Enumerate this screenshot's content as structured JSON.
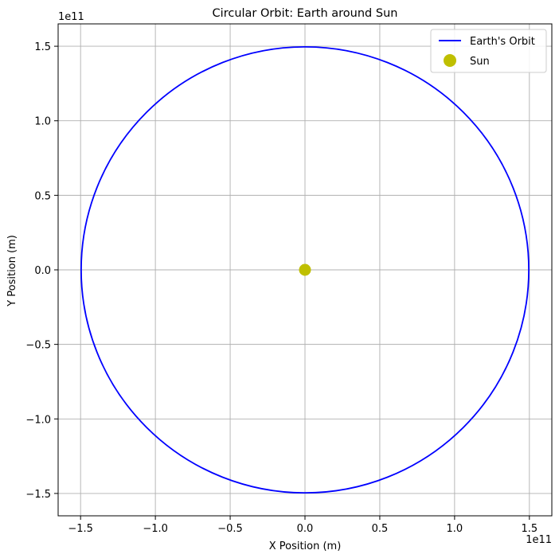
{
  "chart_data": {
    "type": "line",
    "title": "Circular Orbit: Earth around Sun",
    "xlabel": "X Position (m)",
    "ylabel": "Y Position (m)",
    "x_offset_label": "1e11",
    "y_offset_label": "1e11",
    "xlim": [
      -1.65,
      1.65
    ],
    "ylim": [
      -1.65,
      1.65
    ],
    "axis_scale": "1e11",
    "xticks": [
      -1.5,
      -1.0,
      -0.5,
      0.0,
      0.5,
      1.0,
      1.5
    ],
    "yticks": [
      -1.5,
      -1.0,
      -0.5,
      0.0,
      0.5,
      1.0,
      1.5
    ],
    "xtick_labels": [
      "−1.5",
      "−1.0",
      "−0.5",
      "0.0",
      "0.5",
      "1.0",
      "1.5"
    ],
    "ytick_labels": [
      "−1.5",
      "−1.0",
      "−0.5",
      "0.0",
      "0.5",
      "1.0",
      "1.5"
    ],
    "grid": true,
    "legend_position": "top-right",
    "series": [
      {
        "name": "Earth's Orbit",
        "kind": "circle",
        "center": [
          0,
          0
        ],
        "radius": 1.496,
        "color": "#0000ff"
      },
      {
        "name": "Sun",
        "kind": "point",
        "x": 0,
        "y": 0,
        "color": "#bfbf00"
      }
    ]
  }
}
